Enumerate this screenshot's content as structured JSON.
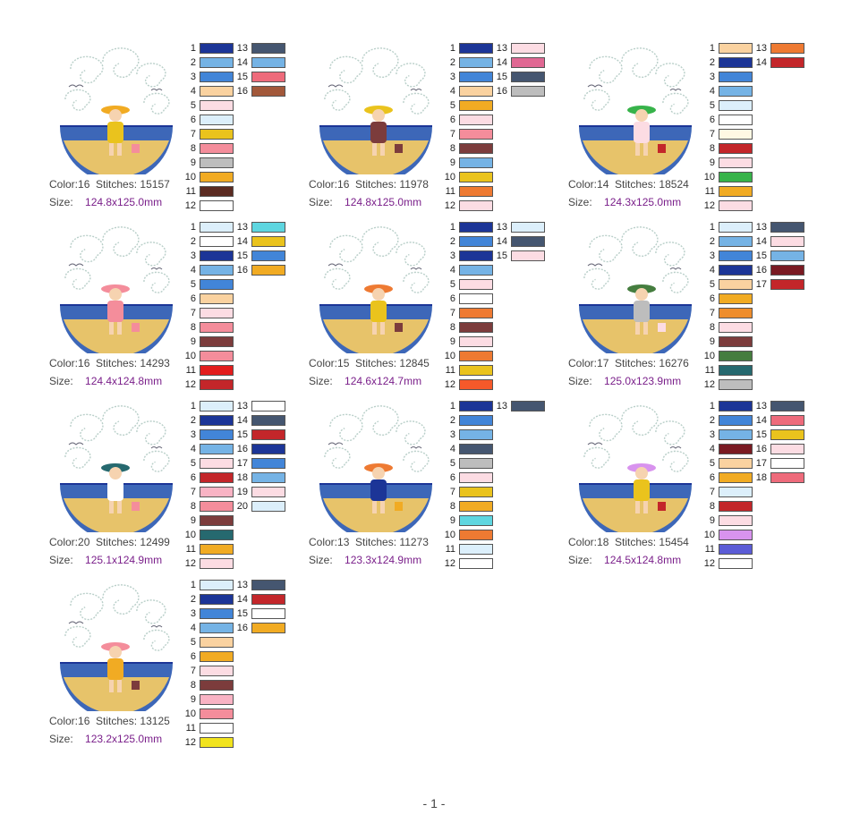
{
  "page": {
    "number_label": "- 1 -"
  },
  "labels": {
    "color": "Color:",
    "stitches": "Stitches:",
    "size": "Size:"
  },
  "designs": [
    {
      "color_count": "16",
      "stitches": "15157",
      "size": "124.8x125.0mm",
      "scene": "girl-in-pink-hat-with-basket",
      "colors": [
        "#1c3597",
        "#75b3e5",
        "#4285d8",
        "#fad2a0",
        "#fcdce3",
        "#dceffb",
        "#eac31d",
        "#f48d9b",
        "#bdbdbd",
        "#f1ab23",
        "#5b2b22",
        "#ffffff",
        "#455670",
        "#75b3e5",
        "#ee6b7b",
        "#a2583a"
      ]
    },
    {
      "color_count": "16",
      "stitches": "11978",
      "size": "124.8x125.0mm",
      "scene": "girl-in-white-hat-with-bucket",
      "colors": [
        "#1c3597",
        "#75b3e5",
        "#4285d8",
        "#fad2a0",
        "#f1ab23",
        "#fcdce3",
        "#f48d9b",
        "#7c3c3c",
        "#75b3e5",
        "#eac31d",
        "#ee7a32",
        "#fcdce3",
        "#fcdce3",
        "#e06893",
        "#455670",
        "#bdbdbd"
      ]
    },
    {
      "color_count": "14",
      "stitches": "18524",
      "size": "124.3x125.0mm",
      "scene": "child-sleeping-on-float",
      "colors": [
        "#fad2a0",
        "#1c3597",
        "#4285d8",
        "#75b3e5",
        "#dceffb",
        "#ffffff",
        "#fff8e3",
        "#c3262a",
        "#fcdce3",
        "#37b34a",
        "#f1ab23",
        "#fcdce3",
        "#ee7a32",
        "#c3262a"
      ]
    },
    {
      "color_count": "16",
      "stitches": "14293",
      "size": "124.4x124.8mm",
      "scene": "girl-with-sun-and-bucket",
      "colors": [
        "#dceffb",
        "#ffffff",
        "#1c3597",
        "#75b3e5",
        "#4285d8",
        "#fad2a0",
        "#fcdce3",
        "#f48d9b",
        "#7c3c3c",
        "#f48d9b",
        "#e21d1d",
        "#c3262a",
        "#5ed6e0",
        "#eac31d",
        "#4285d8",
        "#f1ab23"
      ]
    },
    {
      "color_count": "15",
      "stitches": "12845",
      "size": "124.6x124.7mm",
      "scene": "girl-wading-with-ball",
      "colors": [
        "#1c3597",
        "#4285d8",
        "#1c3597",
        "#75b3e5",
        "#fcdce3",
        "#ffffff",
        "#ee7a32",
        "#7c3c3c",
        "#fcdce3",
        "#ee7a32",
        "#eac31d",
        "#f5592a",
        "#dceffb",
        "#455670",
        "#fcdce3"
      ]
    },
    {
      "color_count": "17",
      "stitches": "16276",
      "size": "125.0x123.9mm",
      "scene": "kids-building-sandcastle",
      "colors": [
        "#dceffb",
        "#75b3e5",
        "#4285d8",
        "#1c3597",
        "#fad2a0",
        "#f1ab23",
        "#ee8d2c",
        "#fcdce3",
        "#7c3c3c",
        "#457d3f",
        "#26696f",
        "#bdbdbd",
        "#455670",
        "#fcdce3",
        "#75b3e5",
        "#7a1a22",
        "#c3262a"
      ]
    },
    {
      "color_count": "20",
      "stitches": "12499",
      "size": "125.1x124.9mm",
      "scene": "girl-relaxing-on-ring",
      "colors": [
        "#dceffb",
        "#1c3597",
        "#4285d8",
        "#75b3e5",
        "#fcdce3",
        "#c3262a",
        "#f9b3c4",
        "#f48d9b",
        "#7c3c3c",
        "#26696f",
        "#f1ab23",
        "#fcdce3",
        "#ffffff",
        "#455670",
        "#c3262a",
        "#1c3597",
        "#4285d8",
        "#75b3e5",
        "#fcdce3",
        "#dceffb"
      ]
    },
    {
      "color_count": "13",
      "stitches": "11273",
      "size": "123.3x124.9mm",
      "scene": "child-with-watering-can",
      "colors": [
        "#1c3597",
        "#4285d8",
        "#75b3e5",
        "#455670",
        "#bdbdbd",
        "#fcdce3",
        "#eac31d",
        "#f1ab23",
        "#5ed6e0",
        "#ee7a32",
        "#dceffb",
        "#ffffff",
        "#455670"
      ]
    },
    {
      "color_count": "18",
      "stitches": "15454",
      "size": "124.5x124.8mm",
      "scene": "two-girls-holding-hands",
      "colors": [
        "#1c3597",
        "#4285d8",
        "#75b3e5",
        "#7a1a22",
        "#fad2a0",
        "#f1ab23",
        "#dceffb",
        "#c3262a",
        "#fcdce3",
        "#d893ee",
        "#5b5cd6",
        "#ffffff",
        "#455670",
        "#ee6b7b",
        "#eac31d",
        "#fcdce3",
        "#ffffff",
        "#ee6b7b"
      ]
    },
    {
      "color_count": "16",
      "stitches": "13125",
      "size": "123.2x125.0mm",
      "scene": "toddler-in-yellow-sunhat",
      "colors": [
        "#dceffb",
        "#1c3597",
        "#4285d8",
        "#75b3e5",
        "#fad2a0",
        "#f1ab23",
        "#fcdce3",
        "#7c3c3c",
        "#f9b3c4",
        "#f48d9b",
        "#ffffff",
        "#f1e31d",
        "#455670",
        "#c3262a",
        "#ffffff",
        "#f1ab23"
      ]
    }
  ]
}
